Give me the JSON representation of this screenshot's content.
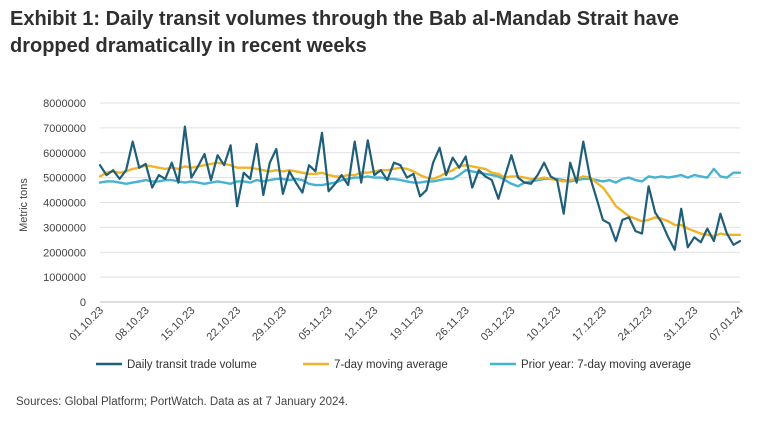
{
  "title": "Exhibit 1: Daily transit volumes through the Bab al-Mandab Strait have dropped dramatically in recent weeks",
  "source": "Sources: Global Platform; PortWatch. Data as at 7 January 2024.",
  "chart_data": {
    "type": "line",
    "title": "Exhibit 1: Daily transit volumes through the Bab al-Mandab Strait have dropped dramatically in recent weeks",
    "xlabel": "",
    "ylabel": "Metric tons",
    "ylim": [
      0,
      8000000
    ],
    "yticks": [
      0,
      1000000,
      2000000,
      3000000,
      4000000,
      5000000,
      6000000,
      7000000,
      8000000
    ],
    "ytick_labels": [
      "0",
      "1000000",
      "2000000",
      "3000000",
      "4000000",
      "5000000",
      "6000000",
      "7000000",
      "8000000"
    ],
    "grid": "horizontal",
    "x_start": "01.10.23",
    "x_days": 99,
    "xtick_labels": [
      "01.10.23",
      "08.10.23",
      "15.10.23",
      "22.10.23",
      "29.10.23",
      "05.11.23",
      "12.11.23",
      "19.11.23",
      "26.11.23",
      "03.12.23",
      "10.12.23",
      "17.12.23",
      "24.12.23",
      "31.12.23",
      "07.01.24"
    ],
    "xtick_days": [
      0,
      7,
      14,
      21,
      28,
      35,
      42,
      49,
      56,
      63,
      70,
      77,
      84,
      91,
      98
    ],
    "legend_position": "bottom",
    "series": [
      {
        "name": "Daily transit trade volume",
        "color": "#1f5f7a",
        "values": [
          5500000,
          5100000,
          5300000,
          4950000,
          5300000,
          6450000,
          5400000,
          5550000,
          4600000,
          5100000,
          4950000,
          5600000,
          4800000,
          7050000,
          5000000,
          5450000,
          5950000,
          4900000,
          5900000,
          5500000,
          6300000,
          3850000,
          5200000,
          4950000,
          6350000,
          4300000,
          5600000,
          6150000,
          4350000,
          5250000,
          4800000,
          4400000,
          5500000,
          5250000,
          6800000,
          4450000,
          4750000,
          5100000,
          4700000,
          6450000,
          4800000,
          6500000,
          5100000,
          5300000,
          4900000,
          5600000,
          5500000,
          5000000,
          5150000,
          4250000,
          4500000,
          5600000,
          6200000,
          5100000,
          5800000,
          5400000,
          5850000,
          4600000,
          5300000,
          5050000,
          4900000,
          4150000,
          5050000,
          5900000,
          5000000,
          4800000,
          4750000,
          5100000,
          5600000,
          5050000,
          4900000,
          3550000,
          5600000,
          4800000,
          6450000,
          5050000,
          4200000,
          3300000,
          3150000,
          2450000,
          3300000,
          3400000,
          2850000,
          2750000,
          4650000,
          3600000,
          3200000,
          2600000,
          2100000,
          3750000,
          2200000,
          2600000,
          2400000,
          2950000,
          2450000,
          3550000,
          2750000,
          2300000,
          2450000
        ]
      },
      {
        "name": "7-day moving average",
        "color": "#f0b429",
        "values": [
          5050000,
          5200000,
          5250000,
          5200000,
          5250000,
          5350000,
          5400000,
          5500000,
          5450000,
          5400000,
          5350000,
          5400000,
          5350000,
          5450000,
          5400000,
          5450000,
          5500000,
          5550000,
          5600000,
          5550000,
          5500000,
          5400000,
          5400000,
          5400000,
          5350000,
          5300000,
          5250000,
          5300000,
          5250000,
          5300000,
          5250000,
          5200000,
          5150000,
          5150000,
          5200000,
          5100000,
          5050000,
          5050000,
          5100000,
          5100000,
          5200000,
          5200000,
          5250000,
          5300000,
          5300000,
          5350000,
          5400000,
          5350000,
          5250000,
          5100000,
          5000000,
          4950000,
          5050000,
          5200000,
          5300000,
          5450000,
          5500000,
          5450000,
          5400000,
          5350000,
          5200000,
          5150000,
          5000000,
          5050000,
          5050000,
          5000000,
          4950000,
          4950000,
          5000000,
          4950000,
          4900000,
          4850000,
          4900000,
          4950000,
          5050000,
          5000000,
          4800000,
          4600000,
          4250000,
          3850000,
          3650000,
          3450000,
          3350000,
          3250000,
          3300000,
          3400000,
          3350000,
          3250000,
          3100000,
          3100000,
          2950000,
          2850000,
          2750000,
          2700000,
          2650000,
          2750000,
          2700000,
          2700000,
          2700000
        ]
      },
      {
        "name": "Prior year: 7-day moving average",
        "color": "#47b3d0",
        "values": [
          4800000,
          4850000,
          4850000,
          4800000,
          4750000,
          4800000,
          4850000,
          4900000,
          4850000,
          4850000,
          4900000,
          4900000,
          4850000,
          4800000,
          4850000,
          4800000,
          4750000,
          4800000,
          4850000,
          4800000,
          4750000,
          4850000,
          4850000,
          4800000,
          4900000,
          4850000,
          4900000,
          4950000,
          4950000,
          4900000,
          4950000,
          4900000,
          4750000,
          4700000,
          4700000,
          4750000,
          4800000,
          4900000,
          4950000,
          5000000,
          5000000,
          5050000,
          5000000,
          5000000,
          4950000,
          4950000,
          4900000,
          4850000,
          4800000,
          4800000,
          4850000,
          4850000,
          4900000,
          4950000,
          4950000,
          5100000,
          5300000,
          5250000,
          5200000,
          5150000,
          5100000,
          5050000,
          4900000,
          4750000,
          4650000,
          4800000,
          4850000,
          4900000,
          4950000,
          4950000,
          4950000,
          4900000,
          4850000,
          4900000,
          4950000,
          4950000,
          4900000,
          4850000,
          4900000,
          4800000,
          4950000,
          5000000,
          4900000,
          4850000,
          5050000,
          5000000,
          5050000,
          5000000,
          5050000,
          5100000,
          5000000,
          5100000,
          5050000,
          5000000,
          5350000,
          5050000,
          5000000,
          5200000,
          5200000
        ]
      }
    ]
  }
}
